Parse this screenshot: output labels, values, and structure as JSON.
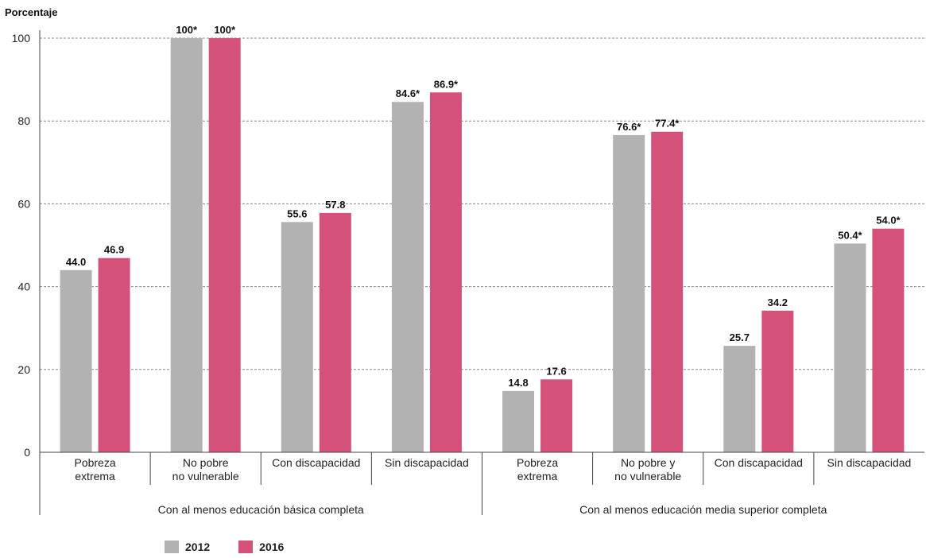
{
  "chart_data": {
    "type": "bar",
    "ylabel": "Porcentaje",
    "ylim": [
      0,
      100
    ],
    "yticks": [
      "0",
      "20",
      "40",
      "60",
      "80",
      "100"
    ],
    "grid": true,
    "legend_position": "bottom-left",
    "groups": [
      {
        "label": "Con al menos educación básica completa",
        "categories": [
          {
            "lines": [
              "Pobreza",
              "extrema"
            ]
          },
          {
            "lines": [
              "No pobre",
              "no vulnerable"
            ]
          },
          {
            "lines": [
              "Con discapacidad"
            ]
          },
          {
            "lines": [
              "Sin discapacidad"
            ]
          }
        ]
      },
      {
        "label": "Con al menos educación media superior completa",
        "categories": [
          {
            "lines": [
              "Pobreza",
              "extrema"
            ]
          },
          {
            "lines": [
              "No pobre y",
              "no vulnerable"
            ]
          },
          {
            "lines": [
              "Con discapacidad"
            ]
          },
          {
            "lines": [
              "Sin discapacidad"
            ]
          }
        ]
      }
    ],
    "series": [
      {
        "name": "2012",
        "color": "#b2b2b2",
        "values": [
          44.0,
          100,
          55.6,
          84.6,
          14.8,
          76.6,
          25.7,
          50.4
        ],
        "labels": [
          "44.0",
          "100*",
          "55.6",
          "84.6*",
          "14.8",
          "76.6*",
          "25.7",
          "50.4*"
        ]
      },
      {
        "name": "2016",
        "color": "#d4527a",
        "values": [
          46.9,
          100,
          57.8,
          86.9,
          17.6,
          77.4,
          34.2,
          54.0
        ],
        "labels": [
          "46.9",
          "100*",
          "57.8",
          "86.9*",
          "17.6",
          "77.4*",
          "34.2",
          "54.0*"
        ]
      }
    ]
  }
}
